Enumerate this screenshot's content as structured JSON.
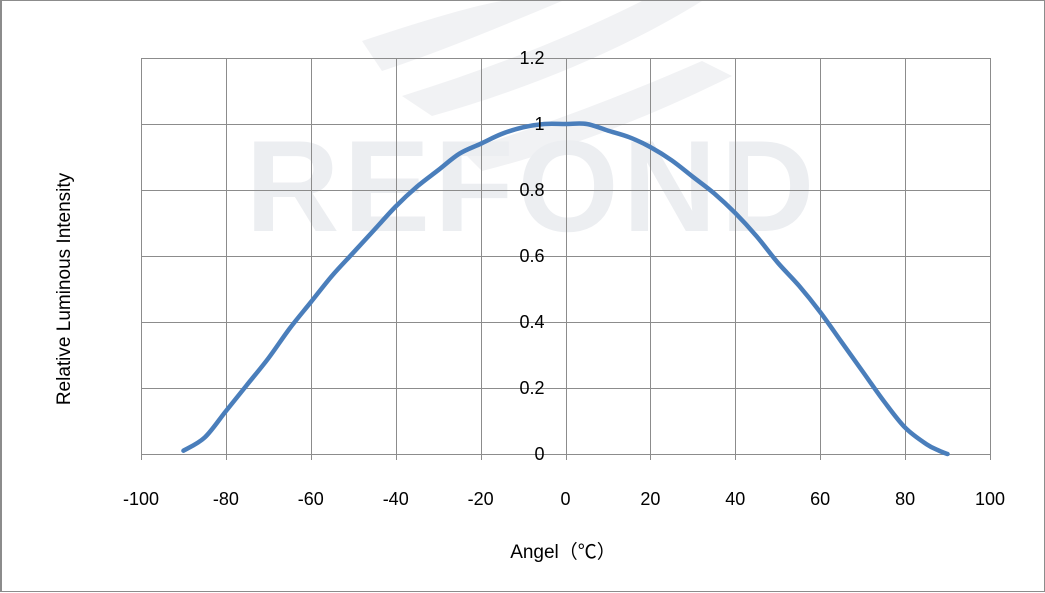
{
  "watermark": {
    "text": "REFOND"
  },
  "chart_data": {
    "type": "line",
    "xlabel": "Angel（℃）",
    "ylabel": "Relative Luminous Intensity",
    "xlim": [
      -100,
      100
    ],
    "ylim": [
      0,
      1.2
    ],
    "x_ticks": [
      -100,
      -80,
      -60,
      -40,
      -20,
      0,
      20,
      40,
      60,
      80,
      100
    ],
    "x_tick_labels": [
      "-100",
      "-80",
      "-60",
      "-40",
      "-20",
      "0",
      "20",
      "40",
      "60",
      "80",
      "100"
    ],
    "y_ticks": [
      0,
      0.2,
      0.4,
      0.6,
      0.8,
      1.0,
      1.2
    ],
    "y_tick_labels": [
      "0",
      "0.2",
      "0.4",
      "0.6",
      "0.8",
      "1",
      "1.2"
    ],
    "grid": true,
    "y_axis_crosses_at_x": 0,
    "series": [
      {
        "color": "#4a7ebb",
        "x": [
          -90,
          -85,
          -80,
          -75,
          -70,
          -65,
          -60,
          -55,
          -50,
          -45,
          -40,
          -35,
          -30,
          -25,
          -20,
          -15,
          -10,
          -5,
          0,
          5,
          10,
          15,
          20,
          25,
          30,
          35,
          40,
          45,
          50,
          55,
          60,
          65,
          70,
          75,
          80,
          85,
          88,
          90
        ],
        "y": [
          0.01,
          0.05,
          0.13,
          0.21,
          0.29,
          0.38,
          0.46,
          0.54,
          0.61,
          0.68,
          0.75,
          0.81,
          0.86,
          0.91,
          0.94,
          0.97,
          0.99,
          1.0,
          1.0,
          1.0,
          0.98,
          0.96,
          0.93,
          0.89,
          0.84,
          0.79,
          0.73,
          0.66,
          0.58,
          0.51,
          0.43,
          0.34,
          0.25,
          0.16,
          0.08,
          0.03,
          0.01,
          0.0
        ]
      }
    ]
  }
}
